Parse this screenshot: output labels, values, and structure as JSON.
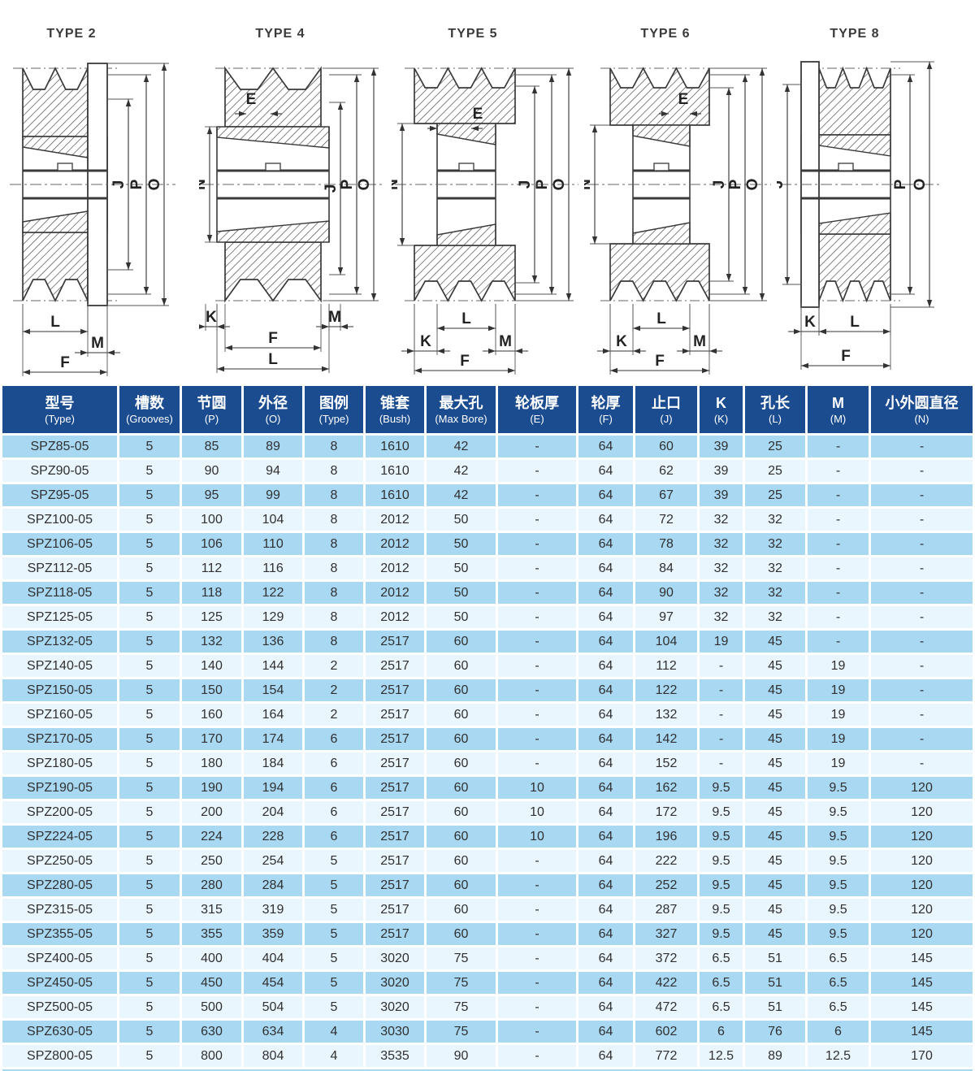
{
  "diagrams": [
    {
      "title": "TYPE 2",
      "left": [],
      "right": [
        "J",
        "P",
        "O"
      ],
      "bottom": [
        "L",
        "M",
        "F"
      ],
      "inner": ""
    },
    {
      "title": "TYPE 4",
      "left": [
        "N"
      ],
      "right": [
        "J",
        "P",
        "O"
      ],
      "bottom": [
        "K",
        "M",
        "F",
        "L"
      ],
      "inner": "E"
    },
    {
      "title": "TYPE 5",
      "left": [
        "N"
      ],
      "right": [
        "J",
        "P",
        "O"
      ],
      "bottom": [
        "L",
        "K",
        "M",
        "F"
      ],
      "inner": "E"
    },
    {
      "title": "TYPE 6",
      "left": [
        "N"
      ],
      "right": [
        "J",
        "P",
        "O"
      ],
      "bottom": [
        "L",
        "K",
        "M",
        "F"
      ],
      "inner": "E"
    },
    {
      "title": "TYPE 8",
      "left": [
        "J"
      ],
      "right": [
        "P",
        "O"
      ],
      "bottom": [
        "K",
        "L",
        "F"
      ],
      "inner": ""
    }
  ],
  "table": {
    "colors": {
      "header_bg": "#1b4c90",
      "row_dark": "#a9d8f3",
      "row_light": "#eaf6fd",
      "header_text": "#ffffff",
      "cell_text": "#303030"
    },
    "columns": [
      {
        "zh": "型号",
        "en": "(Type)"
      },
      {
        "zh": "槽数",
        "en": "(Grooves)"
      },
      {
        "zh": "节圆",
        "en": "(P)"
      },
      {
        "zh": "外径",
        "en": "(O)"
      },
      {
        "zh": "图例",
        "en": "(Type)"
      },
      {
        "zh": "锥套",
        "en": "(Bush)"
      },
      {
        "zh": "最大孔",
        "en": "(Max Bore)"
      },
      {
        "zh": "轮板厚",
        "en": "(E)"
      },
      {
        "zh": "轮厚",
        "en": "(F)"
      },
      {
        "zh": "止口",
        "en": "(J)"
      },
      {
        "zh": "K",
        "en": "(K)"
      },
      {
        "zh": "孔长",
        "en": "(L)"
      },
      {
        "zh": "M",
        "en": "(M)"
      },
      {
        "zh": "小外圆直径",
        "en": "(N)"
      }
    ],
    "rows": [
      [
        "SPZ85-05",
        "5",
        "85",
        "89",
        "8",
        "1610",
        "42",
        "-",
        "64",
        "60",
        "39",
        "25",
        "-",
        "-"
      ],
      [
        "SPZ90-05",
        "5",
        "90",
        "94",
        "8",
        "1610",
        "42",
        "-",
        "64",
        "62",
        "39",
        "25",
        "-",
        "-"
      ],
      [
        "SPZ95-05",
        "5",
        "95",
        "99",
        "8",
        "1610",
        "42",
        "-",
        "64",
        "67",
        "39",
        "25",
        "-",
        "-"
      ],
      [
        "SPZ100-05",
        "5",
        "100",
        "104",
        "8",
        "2012",
        "50",
        "-",
        "64",
        "72",
        "32",
        "32",
        "-",
        "-"
      ],
      [
        "SPZ106-05",
        "5",
        "106",
        "110",
        "8",
        "2012",
        "50",
        "-",
        "64",
        "78",
        "32",
        "32",
        "-",
        "-"
      ],
      [
        "SPZ112-05",
        "5",
        "112",
        "116",
        "8",
        "2012",
        "50",
        "-",
        "64",
        "84",
        "32",
        "32",
        "-",
        "-"
      ],
      [
        "SPZ118-05",
        "5",
        "118",
        "122",
        "8",
        "2012",
        "50",
        "-",
        "64",
        "90",
        "32",
        "32",
        "-",
        "-"
      ],
      [
        "SPZ125-05",
        "5",
        "125",
        "129",
        "8",
        "2012",
        "50",
        "-",
        "64",
        "97",
        "32",
        "32",
        "-",
        "-"
      ],
      [
        "SPZ132-05",
        "5",
        "132",
        "136",
        "8",
        "2517",
        "60",
        "-",
        "64",
        "104",
        "19",
        "45",
        "-",
        "-"
      ],
      [
        "SPZ140-05",
        "5",
        "140",
        "144",
        "2",
        "2517",
        "60",
        "-",
        "64",
        "112",
        "-",
        "45",
        "19",
        "-"
      ],
      [
        "SPZ150-05",
        "5",
        "150",
        "154",
        "2",
        "2517",
        "60",
        "-",
        "64",
        "122",
        "-",
        "45",
        "19",
        "-"
      ],
      [
        "SPZ160-05",
        "5",
        "160",
        "164",
        "2",
        "2517",
        "60",
        "-",
        "64",
        "132",
        "-",
        "45",
        "19",
        "-"
      ],
      [
        "SPZ170-05",
        "5",
        "170",
        "174",
        "6",
        "2517",
        "60",
        "-",
        "64",
        "142",
        "-",
        "45",
        "19",
        "-"
      ],
      [
        "SPZ180-05",
        "5",
        "180",
        "184",
        "6",
        "2517",
        "60",
        "-",
        "64",
        "152",
        "-",
        "45",
        "19",
        "-"
      ],
      [
        "SPZ190-05",
        "5",
        "190",
        "194",
        "6",
        "2517",
        "60",
        "10",
        "64",
        "162",
        "9.5",
        "45",
        "9.5",
        "120"
      ],
      [
        "SPZ200-05",
        "5",
        "200",
        "204",
        "6",
        "2517",
        "60",
        "10",
        "64",
        "172",
        "9.5",
        "45",
        "9.5",
        "120"
      ],
      [
        "SPZ224-05",
        "5",
        "224",
        "228",
        "6",
        "2517",
        "60",
        "10",
        "64",
        "196",
        "9.5",
        "45",
        "9.5",
        "120"
      ],
      [
        "SPZ250-05",
        "5",
        "250",
        "254",
        "5",
        "2517",
        "60",
        "-",
        "64",
        "222",
        "9.5",
        "45",
        "9.5",
        "120"
      ],
      [
        "SPZ280-05",
        "5",
        "280",
        "284",
        "5",
        "2517",
        "60",
        "-",
        "64",
        "252",
        "9.5",
        "45",
        "9.5",
        "120"
      ],
      [
        "SPZ315-05",
        "5",
        "315",
        "319",
        "5",
        "2517",
        "60",
        "-",
        "64",
        "287",
        "9.5",
        "45",
        "9.5",
        "120"
      ],
      [
        "SPZ355-05",
        "5",
        "355",
        "359",
        "5",
        "2517",
        "60",
        "-",
        "64",
        "327",
        "9.5",
        "45",
        "9.5",
        "120"
      ],
      [
        "SPZ400-05",
        "5",
        "400",
        "404",
        "5",
        "3020",
        "75",
        "-",
        "64",
        "372",
        "6.5",
        "51",
        "6.5",
        "145"
      ],
      [
        "SPZ450-05",
        "5",
        "450",
        "454",
        "5",
        "3020",
        "75",
        "-",
        "64",
        "422",
        "6.5",
        "51",
        "6.5",
        "145"
      ],
      [
        "SPZ500-05",
        "5",
        "500",
        "504",
        "5",
        "3020",
        "75",
        "-",
        "64",
        "472",
        "6.5",
        "51",
        "6.5",
        "145"
      ],
      [
        "SPZ630-05",
        "5",
        "630",
        "634",
        "4",
        "3030",
        "75",
        "-",
        "64",
        "602",
        "6",
        "76",
        "6",
        "145"
      ],
      [
        "SPZ800-05",
        "5",
        "800",
        "804",
        "4",
        "3535",
        "90",
        "-",
        "64",
        "772",
        "12.5",
        "89",
        "12.5",
        "170"
      ]
    ]
  }
}
